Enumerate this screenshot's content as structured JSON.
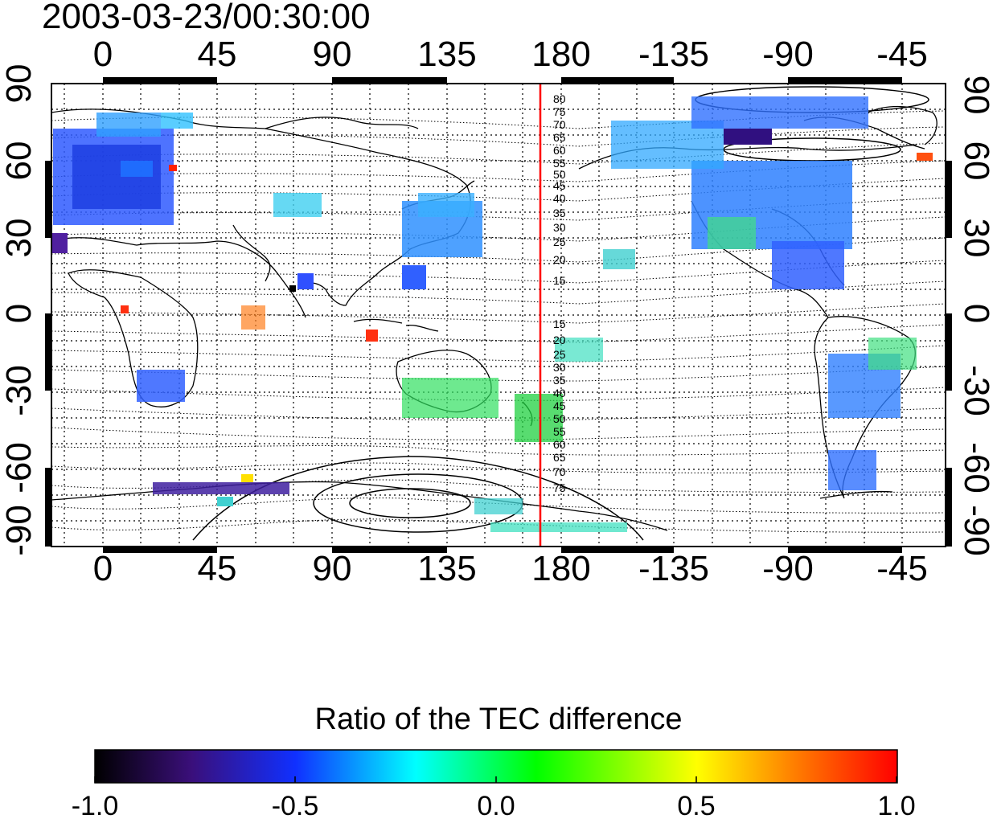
{
  "title": "2003-03-23/00:30:00",
  "map": {
    "lon_ticks_top": [
      "0",
      "45",
      "90",
      "135",
      "180",
      "-135",
      "-90",
      "-45"
    ],
    "lon_ticks_bottom": [
      "0",
      "45",
      "90",
      "135",
      "180",
      "-135",
      "-90",
      "-45"
    ],
    "lat_ticks_left": [
      "90",
      "60",
      "30",
      "0",
      "-30",
      "-60",
      "-90"
    ],
    "lat_ticks_right": [
      "90",
      "60",
      "30",
      "0",
      "-30",
      "-60",
      "-90"
    ],
    "lon_range": [
      -20,
      340
    ],
    "lat_range": [
      -90,
      90
    ],
    "grid": "dotted",
    "contour_labels_north": [
      "80",
      "75",
      "70",
      "65",
      "60",
      "55",
      "50",
      "45",
      "40",
      "35",
      "30",
      "25",
      "20",
      "15"
    ],
    "contour_labels_south": [
      "15",
      "20",
      "25",
      "30",
      "35",
      "40",
      "45",
      "50",
      "55",
      "60",
      "65",
      "70",
      "75"
    ],
    "marker_line_longitude": 172,
    "marker_line_color": "#ff0000"
  },
  "colorbar": {
    "title": "Ratio of the TEC difference",
    "ticks": [
      "-1.0",
      "-0.5",
      "0.0",
      "0.5",
      "1.0"
    ],
    "range": [
      -1.0,
      1.0
    ],
    "colormap": [
      "#000000",
      "#3a0f7a",
      "#1030ff",
      "#00ffff",
      "#00ff00",
      "#ffff00",
      "#ff8000",
      "#ff0000"
    ]
  }
}
